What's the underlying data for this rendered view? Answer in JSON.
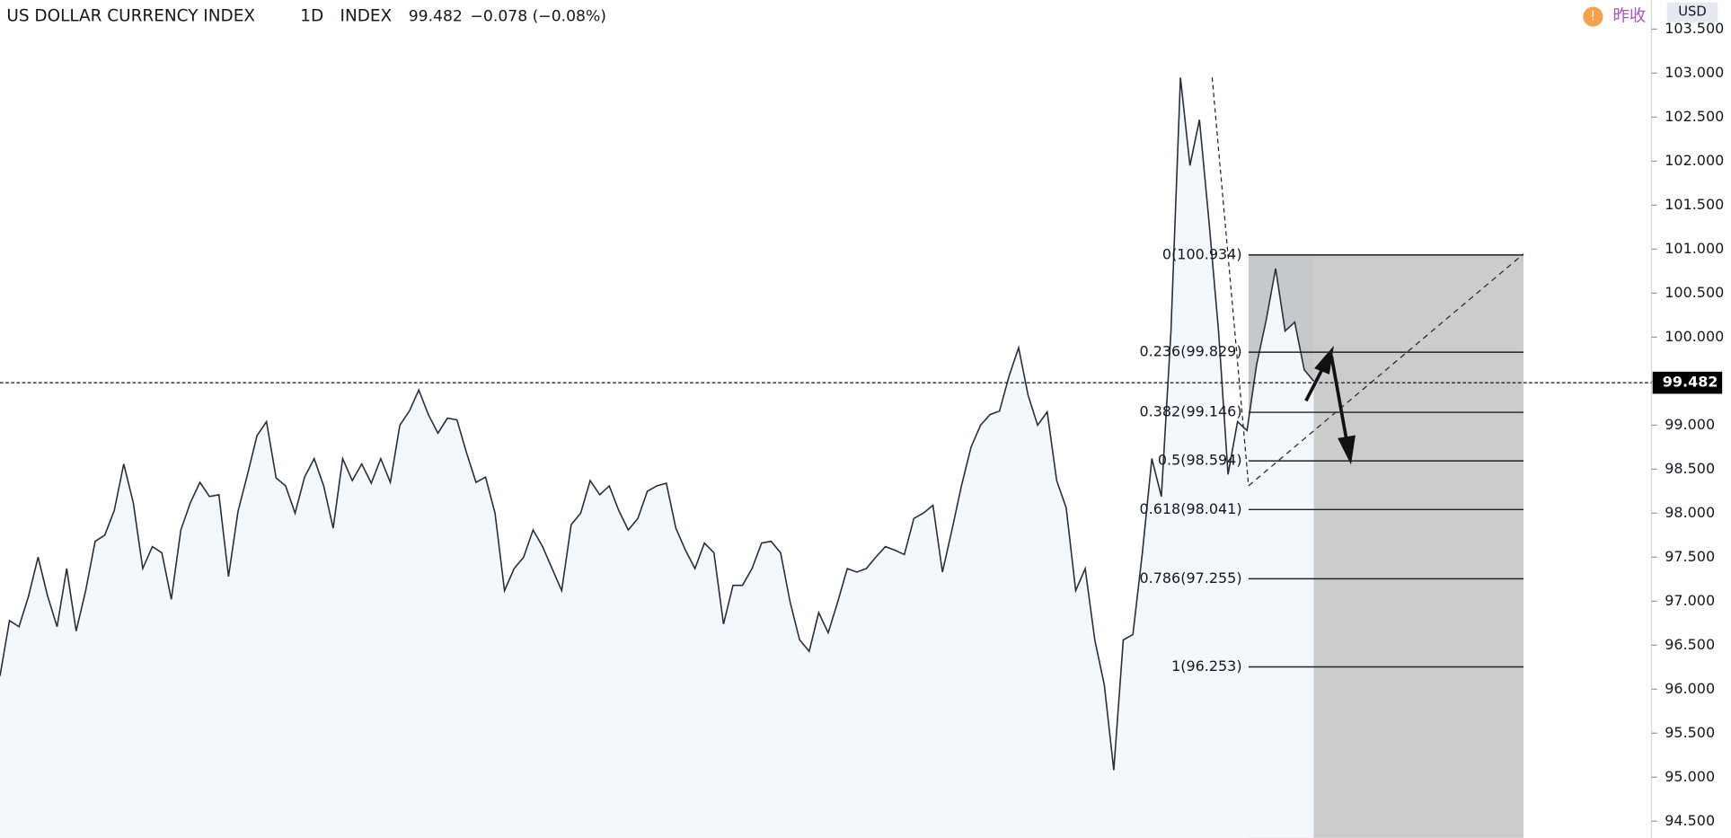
{
  "chart_data": {
    "type": "area",
    "title": "US DOLLAR CURRENCY INDEX",
    "interval": "1D",
    "exchange": "INDEX",
    "last_price": 99.482,
    "change": "−0.078 (−0.08%)",
    "prev_close_label": "昨收",
    "currency": "USD",
    "color": "#2a2e39",
    "fill": "#f3f8fd",
    "values": [
      96.15,
      96.78,
      96.71,
      97.06,
      97.5,
      97.06,
      96.71,
      97.37,
      96.66,
      97.12,
      97.68,
      97.75,
      98.03,
      98.56,
      98.12,
      97.37,
      97.62,
      97.55,
      97.02,
      97.81,
      98.12,
      98.35,
      98.19,
      98.21,
      97.28,
      98.02,
      98.44,
      98.88,
      99.04,
      98.4,
      98.31,
      98.0,
      98.41,
      98.62,
      98.31,
      97.83,
      98.62,
      98.37,
      98.56,
      98.34,
      98.62,
      98.35,
      99.0,
      99.16,
      99.4,
      99.12,
      98.91,
      99.08,
      99.06,
      98.69,
      98.35,
      98.41,
      98.0,
      97.12,
      97.37,
      97.5,
      97.81,
      97.62,
      97.37,
      97.12,
      97.87,
      98.0,
      98.37,
      98.21,
      98.31,
      98.03,
      97.81,
      97.94,
      98.25,
      98.31,
      98.34,
      97.83,
      97.58,
      97.37,
      97.66,
      97.55,
      96.74,
      97.18,
      97.18,
      97.37,
      97.66,
      97.68,
      97.55,
      96.99,
      96.56,
      96.43,
      96.87,
      96.64,
      96.99,
      97.37,
      97.33,
      97.37,
      97.5,
      97.62,
      97.58,
      97.53,
      97.94,
      98.0,
      98.09,
      97.33,
      97.81,
      98.31,
      98.75,
      99.0,
      99.12,
      99.16,
      99.56,
      99.88,
      99.34,
      99.0,
      99.15,
      98.37,
      98.06,
      97.12,
      97.37,
      96.56,
      96.05,
      95.08,
      96.56,
      96.62,
      97.55,
      98.62,
      98.19,
      100.07,
      102.95,
      101.95,
      102.47,
      101.32,
      100.07,
      98.44,
      99.04,
      98.94,
      99.69,
      100.19,
      100.78,
      100.07,
      100.17,
      99.63,
      99.5
    ],
    "ylim": [
      94.31,
      103.83
    ],
    "yticks": [
      {
        "value": 94.5,
        "label": "94.500"
      },
      {
        "value": 95,
        "label": "95.000"
      },
      {
        "value": 95.5,
        "label": "95.500"
      },
      {
        "value": 96,
        "label": "96.000"
      },
      {
        "value": 96.5,
        "label": "96.500"
      },
      {
        "value": 97,
        "label": "97.000"
      },
      {
        "value": 97.5,
        "label": "97.500"
      },
      {
        "value": 98,
        "label": "98.000"
      },
      {
        "value": 98.5,
        "label": "98.500"
      },
      {
        "value": 99,
        "label": "99.000"
      },
      {
        "value": 99.5,
        "label": "99.500"
      },
      {
        "value": 100,
        "label": "100.000"
      },
      {
        "value": 100.5,
        "label": "100.500"
      },
      {
        "value": 101,
        "label": "101.000"
      },
      {
        "value": 101.5,
        "label": "101.500"
      },
      {
        "value": 102,
        "label": "102.000"
      },
      {
        "value": 102.5,
        "label": "102.500"
      },
      {
        "value": 103,
        "label": "103.000"
      },
      {
        "value": 103.5,
        "label": "103.500"
      }
    ],
    "fib_levels": [
      {
        "value": 100.934,
        "label": "0(100.934)"
      },
      {
        "value": 99.829,
        "label": "0.236(99.829)"
      },
      {
        "value": 99.146,
        "label": "0.382(99.146)"
      },
      {
        "value": 98.594,
        "label": "0.5(98.594)"
      },
      {
        "value": 98.041,
        "label": "0.618(98.041)"
      },
      {
        "value": 97.255,
        "label": "0.786(97.255)"
      },
      {
        "value": 96.253,
        "label": "1(96.253)"
      }
    ]
  }
}
